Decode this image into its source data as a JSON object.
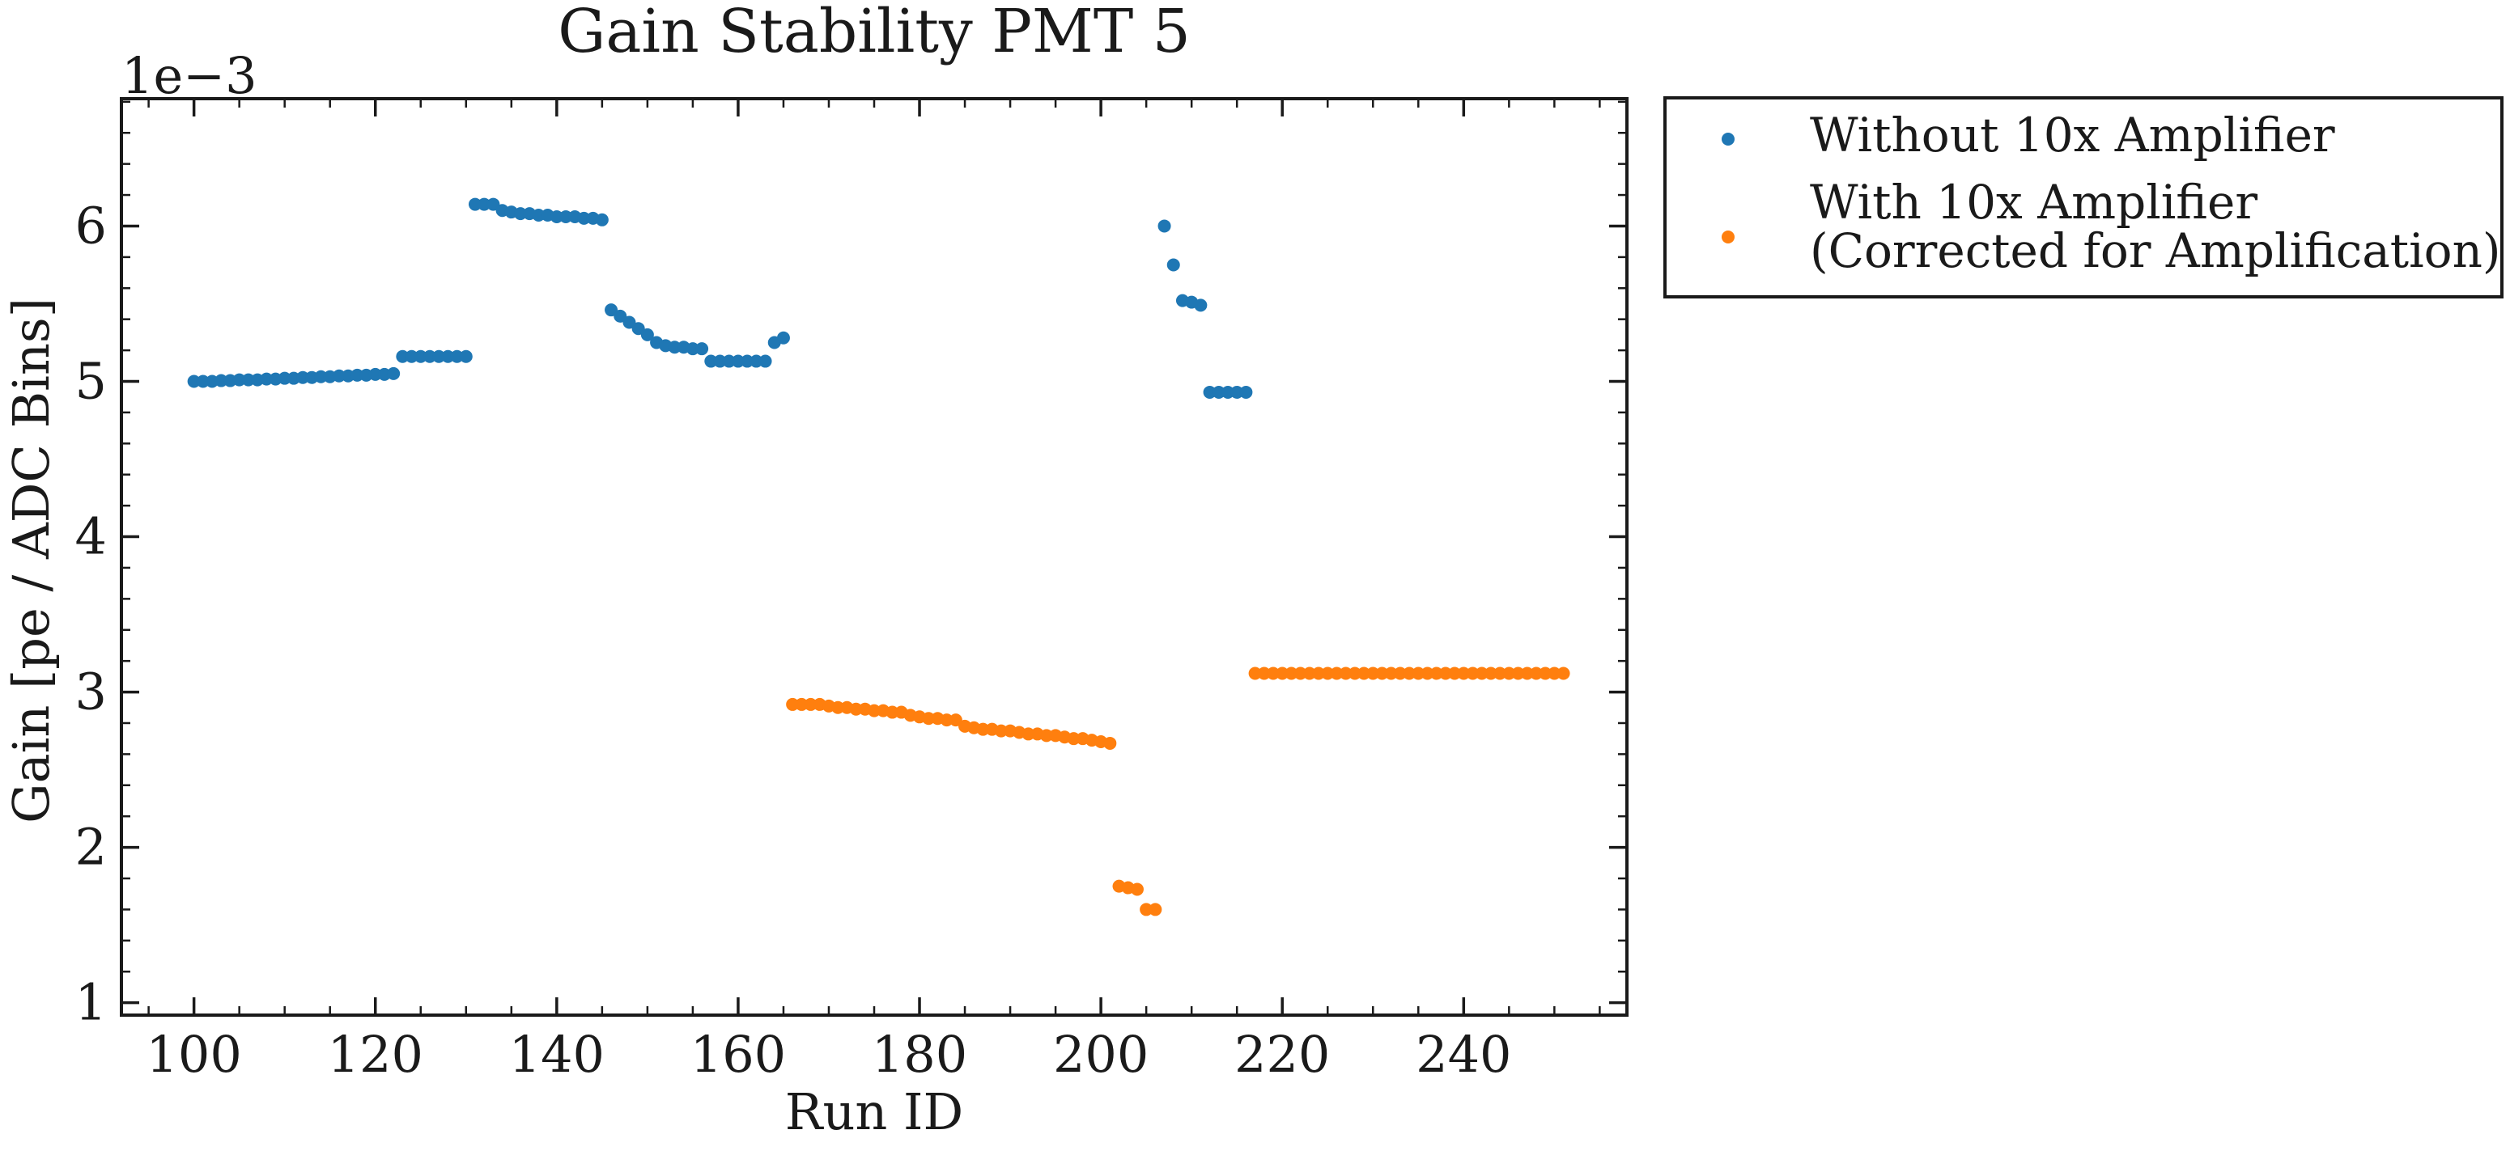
{
  "chart_data": {
    "type": "scatter",
    "title": "Gain Stability PMT 5",
    "xlabel": "Run ID",
    "ylabel": "Gain [pe / ADC Bins]",
    "y_offset_label": "1e−3",
    "xlim": [
      92,
      258
    ],
    "ylim": [
      0.92,
      6.82
    ],
    "x_ticks": [
      100,
      120,
      140,
      160,
      180,
      200,
      220,
      240
    ],
    "y_ticks": [
      1,
      2,
      3,
      4,
      5,
      6
    ],
    "x_minor_step": 5,
    "y_minor_step": 0.2,
    "legend_position": "outside-top-right",
    "series": [
      {
        "name": "Without 10x Amplifier",
        "color": "#1f77b4",
        "x": [
          100,
          101,
          102,
          103,
          104,
          105,
          106,
          107,
          108,
          109,
          110,
          111,
          112,
          113,
          114,
          115,
          116,
          117,
          118,
          119,
          120,
          121,
          122,
          123,
          124,
          125,
          126,
          127,
          128,
          129,
          130,
          131,
          132,
          133,
          134,
          135,
          136,
          137,
          138,
          139,
          140,
          141,
          142,
          143,
          144,
          145,
          146,
          147,
          148,
          149,
          150,
          151,
          152,
          153,
          154,
          155,
          156,
          157,
          158,
          159,
          160,
          161,
          162,
          163,
          164,
          165,
          207,
          208,
          209,
          210,
          211,
          212,
          213,
          214,
          215,
          216
        ],
        "y": [
          5.0,
          5.0,
          5.0,
          5.005,
          5.005,
          5.01,
          5.01,
          5.01,
          5.015,
          5.015,
          5.02,
          5.02,
          5.025,
          5.025,
          5.03,
          5.03,
          5.035,
          5.035,
          5.04,
          5.04,
          5.045,
          5.045,
          5.05,
          5.16,
          5.16,
          5.16,
          5.16,
          5.16,
          5.16,
          5.16,
          5.16,
          6.14,
          6.14,
          6.14,
          6.1,
          6.09,
          6.08,
          6.08,
          6.07,
          6.07,
          6.06,
          6.06,
          6.06,
          6.05,
          6.05,
          6.04,
          5.46,
          5.42,
          5.38,
          5.34,
          5.3,
          5.25,
          5.23,
          5.22,
          5.22,
          5.21,
          5.21,
          5.13,
          5.13,
          5.13,
          5.13,
          5.13,
          5.13,
          5.13,
          5.25,
          5.28,
          6.0,
          5.75,
          5.52,
          5.51,
          5.49,
          4.93,
          4.93,
          4.93,
          4.93,
          4.93
        ]
      },
      {
        "name": "With 10x Amplifier\n(Corrected for Amplification)",
        "color": "#ff7f0e",
        "x": [
          166,
          167,
          168,
          169,
          170,
          171,
          172,
          173,
          174,
          175,
          176,
          177,
          178,
          179,
          180,
          181,
          182,
          183,
          184,
          185,
          186,
          187,
          188,
          189,
          190,
          191,
          192,
          193,
          194,
          195,
          196,
          197,
          198,
          199,
          200,
          201,
          202,
          203,
          204,
          205,
          206,
          217,
          218,
          219,
          220,
          221,
          222,
          223,
          224,
          225,
          226,
          227,
          228,
          229,
          230,
          231,
          232,
          233,
          234,
          235,
          236,
          237,
          238,
          239,
          240,
          241,
          242,
          243,
          244,
          245,
          246,
          247,
          248,
          249,
          250,
          251
        ],
        "y": [
          2.92,
          2.92,
          2.92,
          2.92,
          2.91,
          2.9,
          2.9,
          2.89,
          2.89,
          2.88,
          2.88,
          2.87,
          2.87,
          2.85,
          2.84,
          2.83,
          2.83,
          2.82,
          2.82,
          2.78,
          2.77,
          2.76,
          2.76,
          2.75,
          2.75,
          2.74,
          2.73,
          2.73,
          2.72,
          2.72,
          2.71,
          2.7,
          2.7,
          2.69,
          2.68,
          2.67,
          1.75,
          1.74,
          1.73,
          1.6,
          1.6,
          3.12,
          3.12,
          3.12,
          3.12,
          3.12,
          3.12,
          3.12,
          3.12,
          3.12,
          3.12,
          3.12,
          3.12,
          3.12,
          3.12,
          3.12,
          3.12,
          3.12,
          3.12,
          3.12,
          3.12,
          3.12,
          3.12,
          3.12,
          3.12,
          3.12,
          3.12,
          3.12,
          3.12,
          3.12,
          3.12,
          3.12,
          3.12,
          3.12,
          3.12,
          3.12
        ]
      }
    ]
  }
}
